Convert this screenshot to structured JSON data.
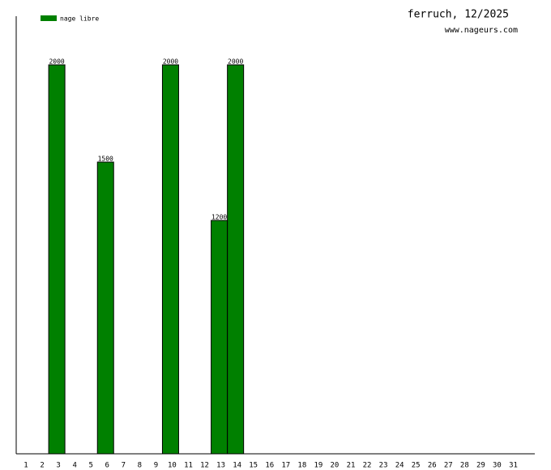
{
  "chart_data": {
    "type": "bar",
    "title": "ferruch, 12/2025",
    "subtitle": "www.nageurs.com",
    "categories": [
      "1",
      "2",
      "3",
      "4",
      "5",
      "6",
      "7",
      "8",
      "9",
      "10",
      "11",
      "12",
      "13",
      "14",
      "15",
      "16",
      "17",
      "18",
      "19",
      "20",
      "21",
      "22",
      "23",
      "24",
      "25",
      "26",
      "27",
      "28",
      "29",
      "30",
      "31"
    ],
    "series": [
      {
        "name": "nage libre",
        "color": "#008000",
        "values": [
          null,
          null,
          2000,
          null,
          null,
          1500,
          null,
          null,
          null,
          2000,
          null,
          null,
          1200,
          2000,
          null,
          null,
          null,
          null,
          null,
          null,
          null,
          null,
          null,
          null,
          null,
          null,
          null,
          null,
          null,
          null,
          null
        ]
      }
    ],
    "ylim": [
      0,
      2250
    ],
    "legend": "top-left"
  }
}
